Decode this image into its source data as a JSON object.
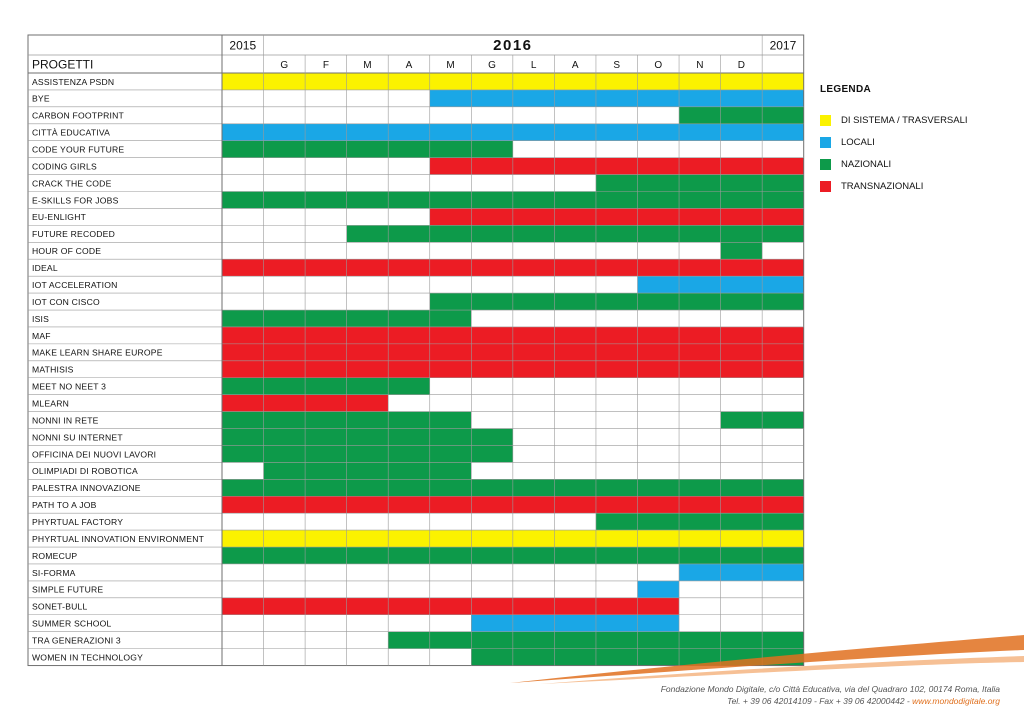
{
  "colors": {
    "sistema": "#fbf200",
    "locali": "#1aa7e6",
    "nazionali": "#0d9a4a",
    "transnazionali": "#ec1c24",
    "accent": "#e0701e"
  },
  "legend": {
    "title": "LEGENDA",
    "items": [
      {
        "label": "DI SISTEMA / TRASVERSALI",
        "color": "#fbf200"
      },
      {
        "label": "LOCALI",
        "color": "#1aa7e6"
      },
      {
        "label": "NAZIONALI",
        "color": "#0d9a4a"
      },
      {
        "label": "TRANSNAZIONALI",
        "color": "#ec1c24"
      }
    ]
  },
  "footer": {
    "line1": "Fondazione Mondo Digitale, c/o Città Educativa, via del Quadraro 102, 00174 Roma, Italia",
    "line2": "Tel. + 39 06 42014109 - Fax + 39 06 42000442 - ",
    "link": "www.mondodigitale.org"
  },
  "chart_data": {
    "type": "table",
    "header": {
      "col_projects": "PROGETTI",
      "year_prev": "2015",
      "year_main": "2016",
      "year_next": "2017"
    },
    "months": [
      "G",
      "F",
      "M",
      "A",
      "M",
      "G",
      "L",
      "A",
      "S",
      "O",
      "N",
      "D"
    ],
    "columns_note": "column 0 = 2015, columns 1-12 = months of 2016, column 13 = 2017",
    "projects": [
      {
        "name": "ASSISTENZA PSDN",
        "category": "sistema",
        "start": 0,
        "end": 13
      },
      {
        "name": "BYE",
        "category": "locali",
        "start": 5,
        "end": 13
      },
      {
        "name": "CARBON FOOTPRINT",
        "category": "nazionali",
        "start": 11,
        "end": 13
      },
      {
        "name": "CITTÀ EDUCATIVA",
        "category": "locali",
        "start": 0,
        "end": 13
      },
      {
        "name": "CODE YOUR FUTURE",
        "category": "nazionali",
        "start": 0,
        "end": 6
      },
      {
        "name": "CODING GIRLS",
        "category": "transnazionali",
        "start": 5,
        "end": 13
      },
      {
        "name": "CRACK THE CODE",
        "category": "nazionali",
        "start": 9,
        "end": 13
      },
      {
        "name": "E-SKILLS FOR JOBS",
        "category": "nazionali",
        "start": 0,
        "end": 13
      },
      {
        "name": "EU-ENLIGHT",
        "category": "transnazionali",
        "start": 5,
        "end": 13
      },
      {
        "name": "FUTURE RECODED",
        "category": "nazionali",
        "start": 3,
        "end": 13
      },
      {
        "name": "HOUR OF CODE",
        "category": "nazionali",
        "start": 12,
        "end": 12
      },
      {
        "name": "IDEAL",
        "category": "transnazionali",
        "start": 0,
        "end": 13
      },
      {
        "name": "IOT ACCELERATION",
        "category": "locali",
        "start": 10,
        "end": 13
      },
      {
        "name": "IOT CON CISCO",
        "category": "nazionali",
        "start": 5,
        "end": 13
      },
      {
        "name": "ISIS",
        "category": "nazionali",
        "start": 0,
        "end": 5
      },
      {
        "name": "MAF",
        "category": "transnazionali",
        "start": 0,
        "end": 13
      },
      {
        "name": "MAKE LEARN SHARE EUROPE",
        "category": "transnazionali",
        "start": 0,
        "end": 13
      },
      {
        "name": "MATHISIS",
        "category": "transnazionali",
        "start": 0,
        "end": 13
      },
      {
        "name": "MEET NO NEET 3",
        "category": "nazionali",
        "start": 0,
        "end": 4
      },
      {
        "name": "MLEARN",
        "category": "transnazionali",
        "start": 0,
        "end": 3
      },
      {
        "name": "NONNI IN RETE",
        "category": "nazionali",
        "start": 0,
        "end": 5,
        "extra": [
          12,
          13
        ]
      },
      {
        "name": "NONNI SU INTERNET",
        "category": "nazionali",
        "start": 0,
        "end": 6
      },
      {
        "name": "OFFICINA DEI NUOVI LAVORI",
        "category": "nazionali",
        "start": 0,
        "end": 6
      },
      {
        "name": "OLIMPIADI DI ROBOTICA",
        "category": "nazionali",
        "start": 1,
        "end": 5
      },
      {
        "name": "PALESTRA INNOVAZIONE",
        "category": "nazionali",
        "start": 0,
        "end": 13
      },
      {
        "name": "PATH TO A JOB",
        "category": "transnazionali",
        "start": 0,
        "end": 13
      },
      {
        "name": "PHYRTUAL FACTORY",
        "category": "nazionali",
        "start": 9,
        "end": 13
      },
      {
        "name": "PHYRTUAL INNOVATION ENVIRONMENT",
        "category": "sistema",
        "start": 0,
        "end": 13
      },
      {
        "name": "ROMECUP",
        "category": "nazionali",
        "start": 0,
        "end": 13
      },
      {
        "name": "SI-FORMA",
        "category": "locali",
        "start": 11,
        "end": 13
      },
      {
        "name": "SIMPLE FUTURE",
        "category": "locali",
        "start": 10,
        "end": 10
      },
      {
        "name": "SONET-BULL",
        "category": "transnazionali",
        "start": 0,
        "end": 10
      },
      {
        "name": "SUMMER SCHOOL",
        "category": "locali",
        "start": 6,
        "end": 10
      },
      {
        "name": "TRA GENERAZIONI 3",
        "category": "nazionali",
        "start": 4,
        "end": 13
      },
      {
        "name": "WOMEN IN TECHNOLOGY",
        "category": "nazionali",
        "start": 6,
        "end": 13
      }
    ]
  }
}
